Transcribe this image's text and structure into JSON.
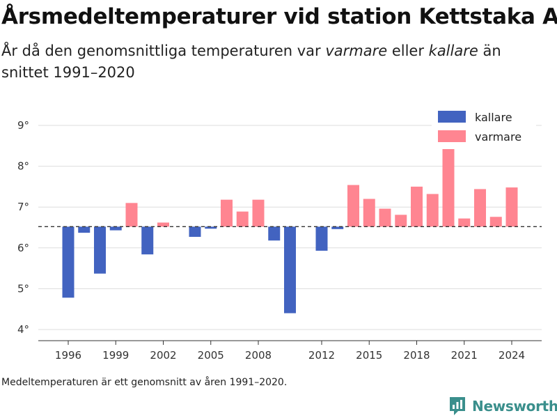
{
  "title": "Årsmedeltemperaturer vid station Kettstaka A",
  "subtitle": {
    "part1": "År då den genomsnittliga temperaturen var ",
    "warm_word": "varmare",
    "part2": " eller ",
    "cold_word": "kallare",
    "part3": " än snittet 1991–2020"
  },
  "footnote": "Medeltemperaturen är ett genomsnitt av åren 1991–2020.",
  "brand": "Newsworthy",
  "colors": {
    "kallare": "#4263c0",
    "varmare": "#ff8591",
    "grid": "#dddddd",
    "baseline": "#333333",
    "brand": "#3a8f8c"
  },
  "chart_data": {
    "type": "bar",
    "baseline": 6.52,
    "baseline_style": "dashed",
    "ylim": [
      3.8,
      9.2
    ],
    "yticks": [
      4,
      5,
      6,
      7,
      8,
      9
    ],
    "ytick_labels": [
      "4°",
      "5°",
      "6°",
      "7°",
      "8°",
      "9°"
    ],
    "xlim": [
      1994.8,
      2025.8
    ],
    "xticks": [
      1996,
      1999,
      2002,
      2005,
      2008,
      2012,
      2015,
      2018,
      2021,
      2024
    ],
    "xtick_labels": [
      "1996",
      "1999",
      "2002",
      "2005",
      "2008",
      "2012",
      "2015",
      "2018",
      "2021",
      "2024"
    ],
    "grid": true,
    "legend": {
      "position": "top-right",
      "entries": [
        {
          "name": "kallare",
          "color": "#4263c0"
        },
        {
          "name": "varmare",
          "color": "#ff8591"
        }
      ]
    },
    "series": [
      {
        "name": "kallare",
        "points": [
          {
            "x": 1996,
            "y": 4.78
          },
          {
            "x": 1997,
            "y": 6.37
          },
          {
            "x": 1998,
            "y": 5.37
          },
          {
            "x": 1999,
            "y": 6.43
          },
          {
            "x": 2001,
            "y": 5.84
          },
          {
            "x": 2004,
            "y": 6.27
          },
          {
            "x": 2005,
            "y": 6.47
          },
          {
            "x": 2009,
            "y": 6.18
          },
          {
            "x": 2010,
            "y": 4.4
          },
          {
            "x": 2012,
            "y": 5.93
          },
          {
            "x": 2013,
            "y": 6.46
          }
        ]
      },
      {
        "name": "varmare",
        "points": [
          {
            "x": 2000,
            "y": 7.1
          },
          {
            "x": 2002,
            "y": 6.62
          },
          {
            "x": 2006,
            "y": 7.18
          },
          {
            "x": 2007,
            "y": 6.89
          },
          {
            "x": 2008,
            "y": 7.18
          },
          {
            "x": 2014,
            "y": 7.54
          },
          {
            "x": 2015,
            "y": 7.2
          },
          {
            "x": 2016,
            "y": 6.96
          },
          {
            "x": 2017,
            "y": 6.81
          },
          {
            "x": 2018,
            "y": 7.5
          },
          {
            "x": 2019,
            "y": 7.32
          },
          {
            "x": 2020,
            "y": 8.42
          },
          {
            "x": 2021,
            "y": 6.72
          },
          {
            "x": 2022,
            "y": 7.44
          },
          {
            "x": 2023,
            "y": 6.76
          },
          {
            "x": 2024,
            "y": 7.48
          }
        ]
      }
    ]
  }
}
